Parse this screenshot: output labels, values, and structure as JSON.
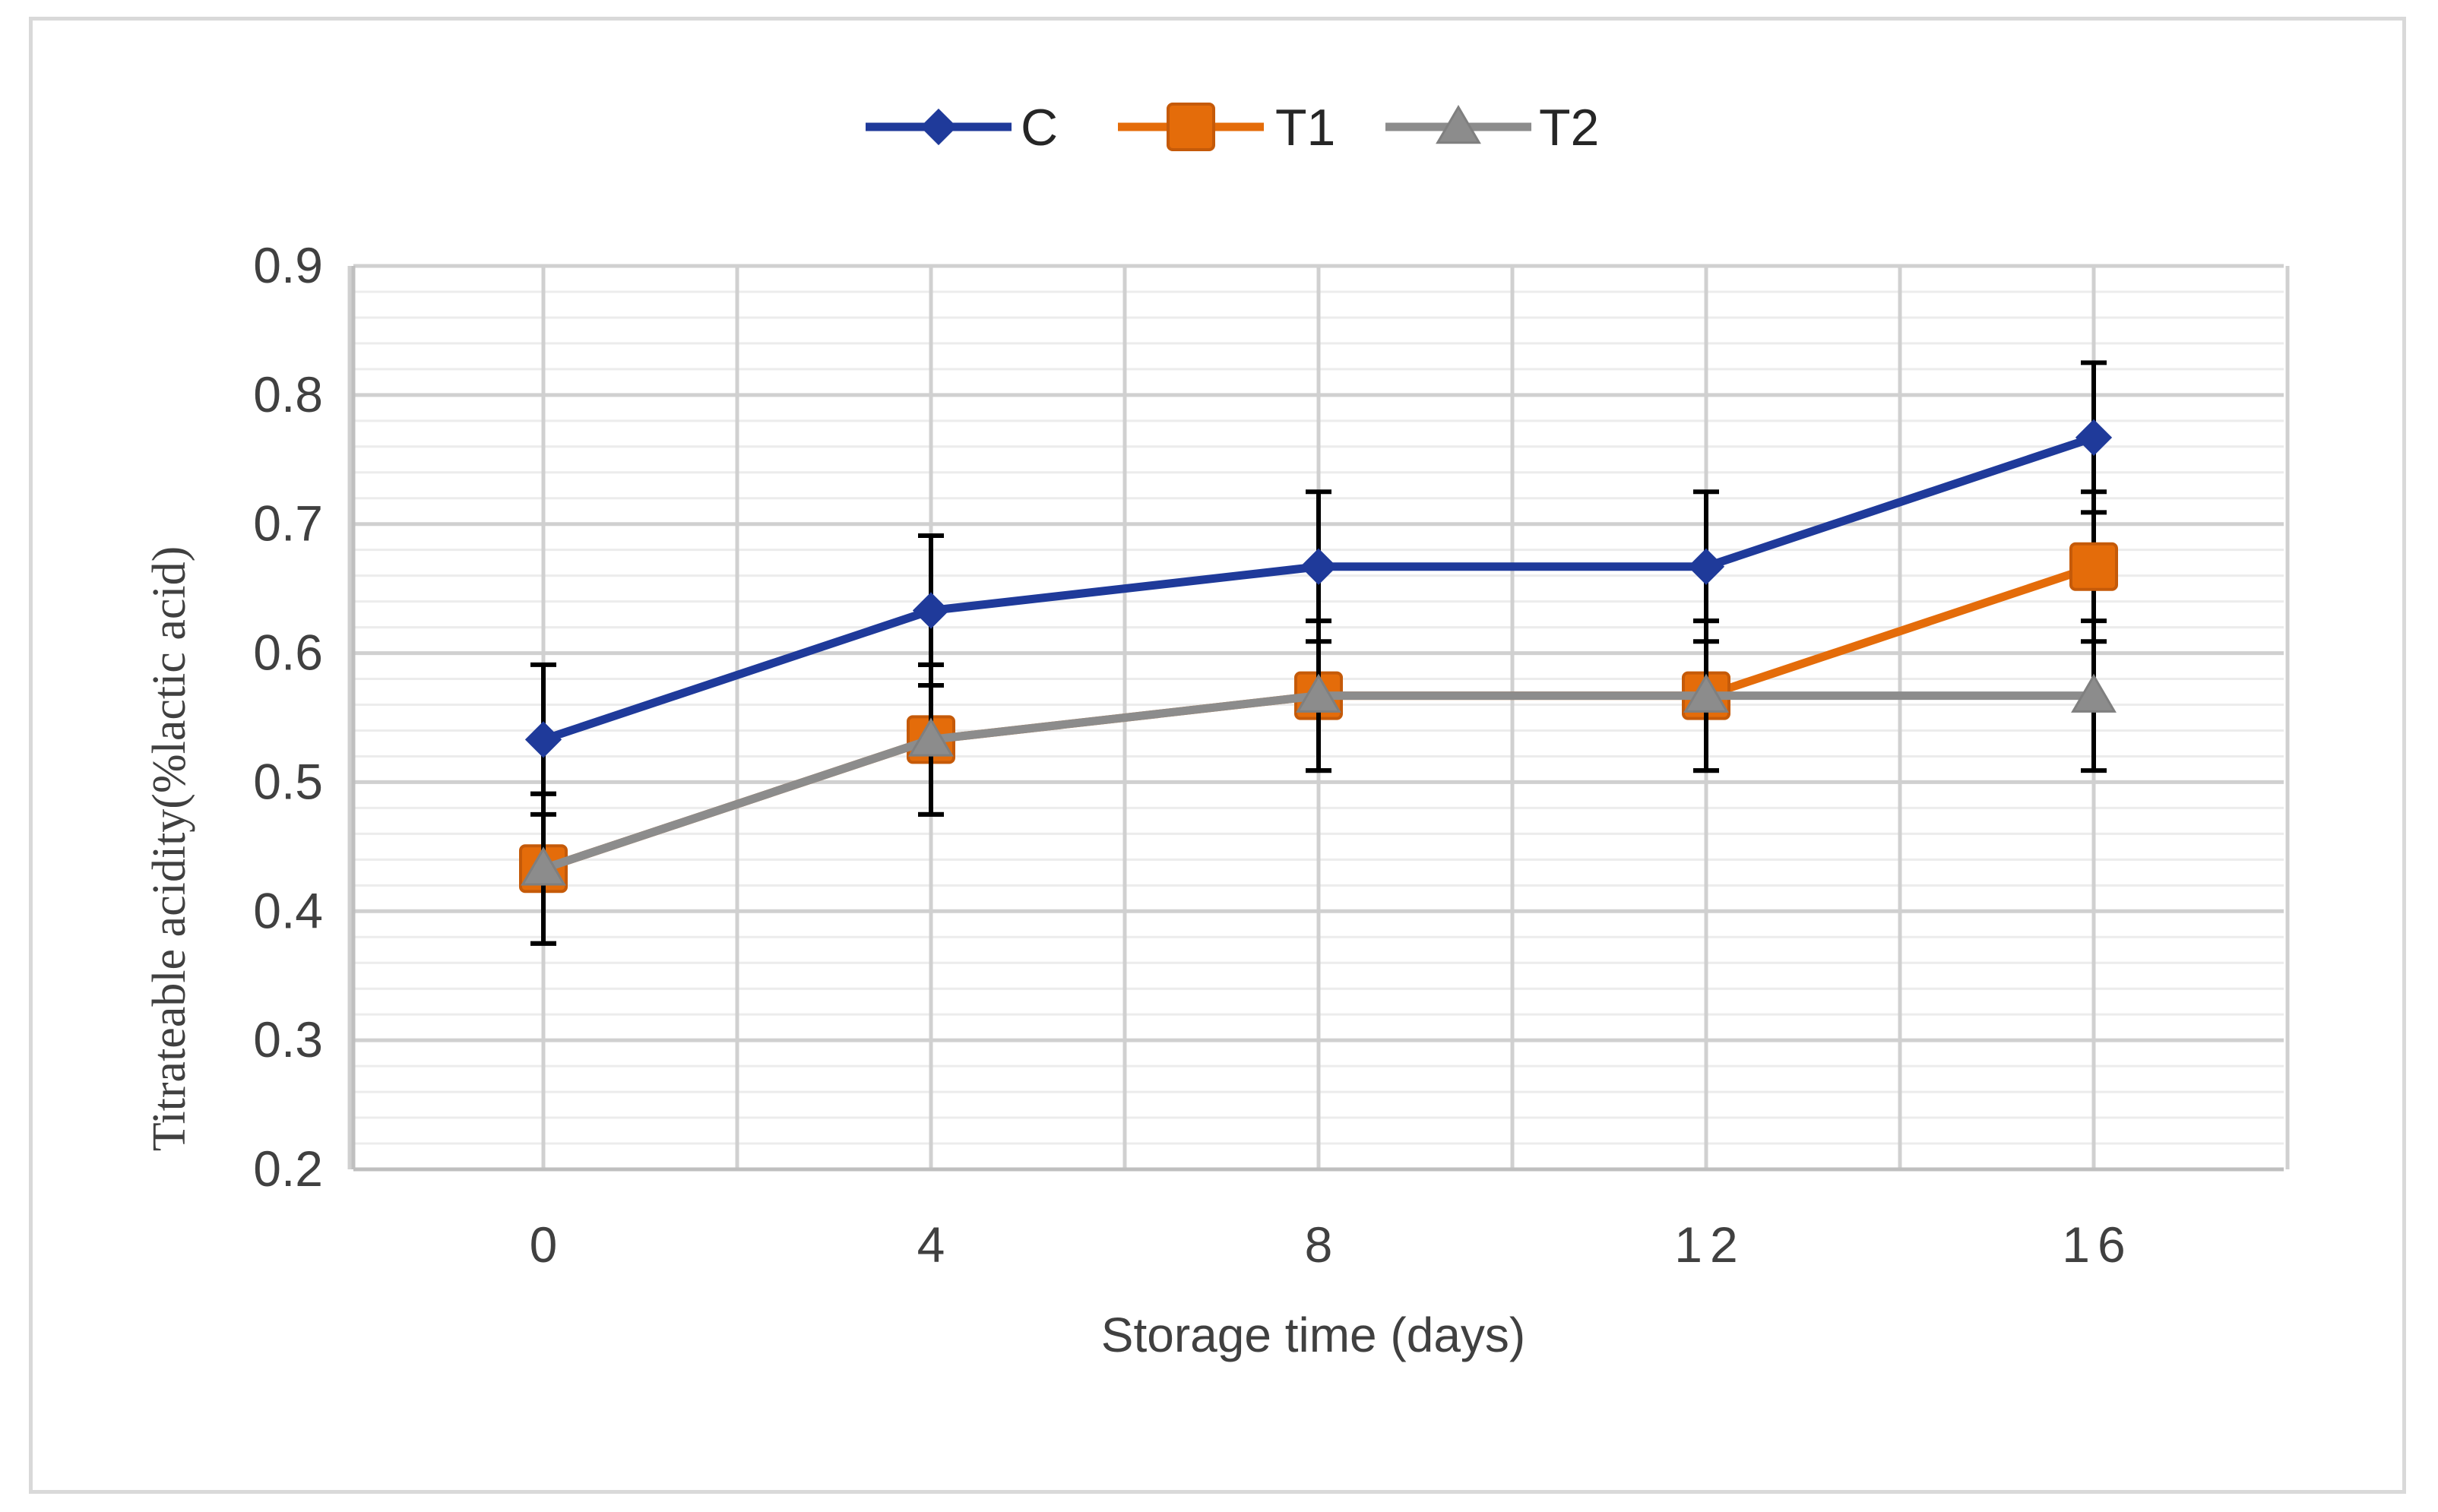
{
  "chart_data": {
    "type": "line",
    "x": [
      0,
      4,
      8,
      12,
      16
    ],
    "xlabel": "Storage time (days)",
    "ylabel": "Titrateable acidity(%lactic acid)",
    "ylim": [
      0.2,
      0.9
    ],
    "yticks": [
      "0.2",
      "0.3",
      "0.4",
      "0.5",
      "0.6",
      "0.7",
      "0.8",
      "0.9"
    ],
    "xticks": [
      "0",
      "4",
      "8",
      "12",
      "16"
    ],
    "grid": true,
    "legend_position": "top-center",
    "series": [
      {
        "name": "C",
        "color": "#1f3a9a",
        "marker": "diamond",
        "values": [
          0.533,
          0.633,
          0.667,
          0.667,
          0.767
        ],
        "errors": [
          0.058,
          0.058,
          0.058,
          0.058,
          0.058
        ]
      },
      {
        "name": "T1",
        "color": "#e46c0a",
        "marker": "square",
        "values": [
          0.433,
          0.533,
          0.567,
          0.567,
          0.667
        ],
        "errors": [
          0.058,
          0.058,
          0.058,
          0.058,
          0.058
        ]
      },
      {
        "name": "T2",
        "color": "#8c8c8c",
        "marker": "triangle",
        "values": [
          0.433,
          0.533,
          0.567,
          0.567,
          0.567
        ],
        "errors": [
          0.058,
          0.058,
          0.058,
          0.058,
          0.058
        ]
      }
    ]
  }
}
